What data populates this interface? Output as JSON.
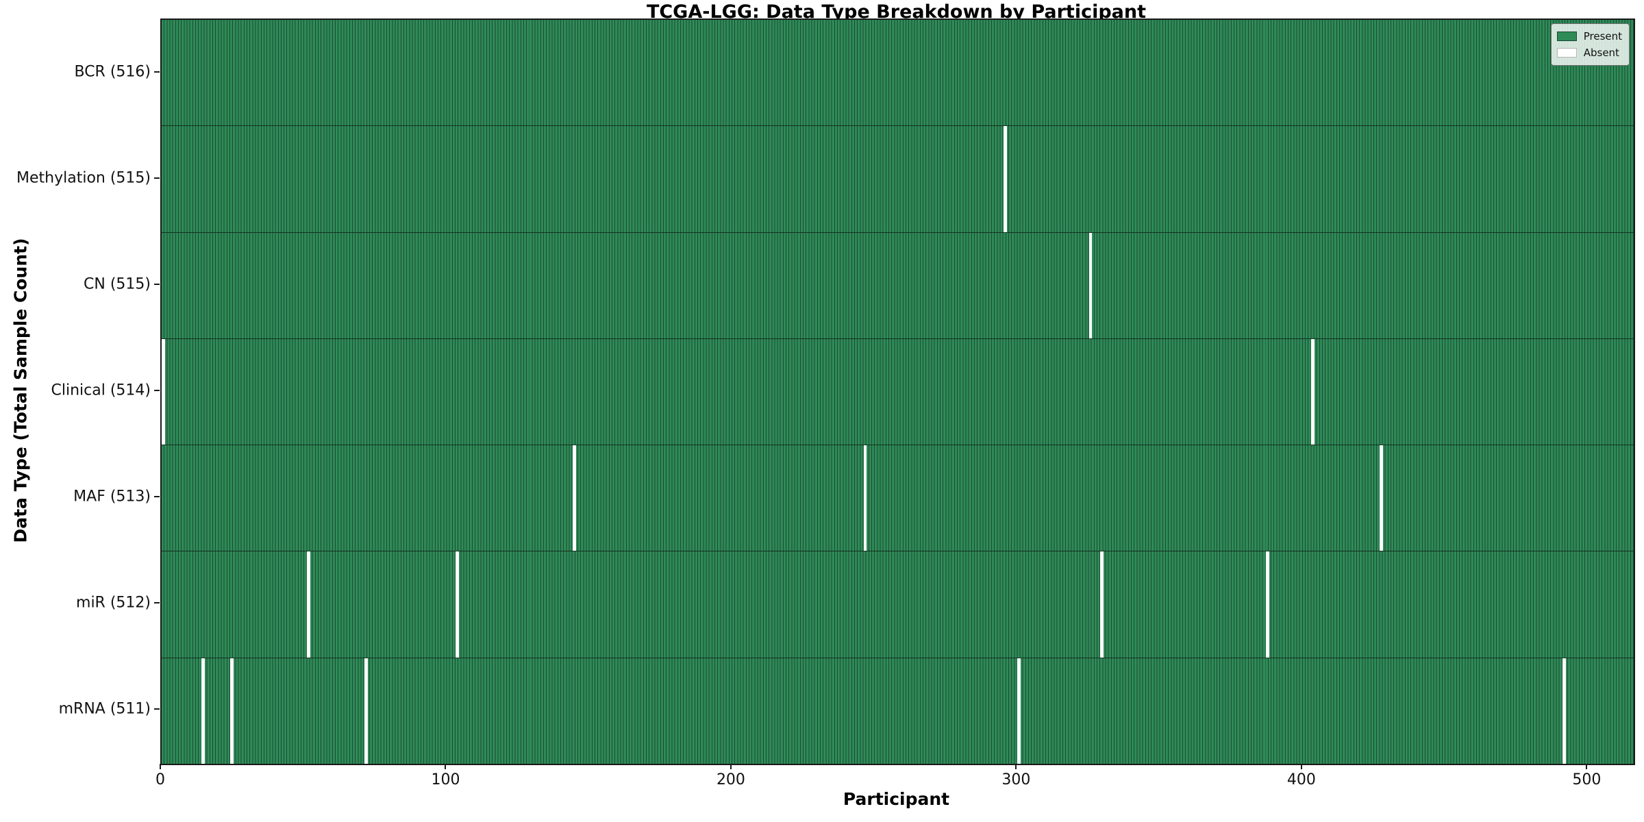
{
  "chart_data": {
    "type": "heatmap",
    "title": "TCGA-LGG: Data Type Breakdown by Participant",
    "xlabel": "Participant",
    "ylabel": "Data Type (Total Sample Count)",
    "n_participants": 516,
    "x_range": [
      0,
      516
    ],
    "x_ticks": [
      0,
      100,
      200,
      300,
      400,
      500
    ],
    "grid": false,
    "rows": [
      {
        "key": "bcr",
        "data_type": "BCR",
        "label": "BCR (516)",
        "total": 516,
        "absent_participants": []
      },
      {
        "key": "methylation",
        "data_type": "Methylation",
        "label": "Methylation (515)",
        "total": 515,
        "absent_participants": [
          295
        ]
      },
      {
        "key": "cn",
        "data_type": "CN",
        "label": "CN (515)",
        "total": 515,
        "absent_participants": [
          325
        ]
      },
      {
        "key": "clinical",
        "data_type": "Clinical",
        "label": "Clinical (514)",
        "total": 514,
        "absent_participants": [
          0,
          403
        ]
      },
      {
        "key": "maf",
        "data_type": "MAF",
        "label": "MAF (513)",
        "total": 513,
        "absent_participants": [
          144,
          246,
          427
        ]
      },
      {
        "key": "mir",
        "data_type": "miR",
        "label": "miR (512)",
        "total": 512,
        "absent_participants": [
          51,
          103,
          329,
          387
        ]
      },
      {
        "key": "mrna",
        "data_type": "mRNA",
        "label": "mRNA (511)",
        "total": 511,
        "absent_participants": [
          14,
          24,
          71,
          300,
          491
        ]
      }
    ],
    "legend": {
      "position": "upper right",
      "entries": [
        {
          "label": "Present",
          "color": "#2e8b57"
        },
        {
          "label": "Absent",
          "color": "#ffffff"
        }
      ]
    },
    "colors": {
      "present": "#2e8b57",
      "bar_edge": "#1c4a33",
      "absent": "#ffffff",
      "spine": "#1a1a1a"
    }
  }
}
